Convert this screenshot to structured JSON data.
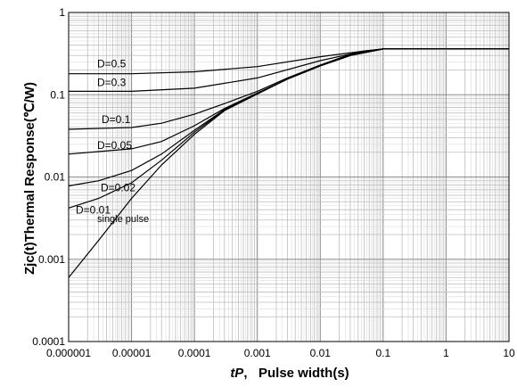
{
  "chart_data": {
    "type": "line",
    "title": "",
    "xlabel_symbol": "tP",
    "xlabel_text": "Pulse width(s)",
    "ylabel": "Zjc(t)Thermal Response(℃/W)",
    "x_scale": "log",
    "y_scale": "log",
    "xlim": [
      1e-06,
      10
    ],
    "ylim": [
      0.0001,
      1
    ],
    "x_ticks": [
      "0.000001",
      "0.00001",
      "0.0001",
      "0.001",
      "0.01",
      "0.1",
      "1",
      "10"
    ],
    "y_ticks": [
      "0.0001",
      "0.001",
      "0.01",
      "0.1",
      "1"
    ],
    "grid": true,
    "series": [
      {
        "name": "D=0.5",
        "x": [
          1e-06,
          1e-05,
          0.0001,
          0.001,
          0.01,
          0.05,
          0.1,
          10
        ],
        "y": [
          0.18,
          0.18,
          0.19,
          0.22,
          0.29,
          0.34,
          0.36,
          0.36
        ]
      },
      {
        "name": "D=0.3",
        "x": [
          1e-06,
          1e-05,
          0.0001,
          0.001,
          0.01,
          0.05,
          0.1,
          10
        ],
        "y": [
          0.11,
          0.11,
          0.12,
          0.16,
          0.26,
          0.34,
          0.36,
          0.36
        ]
      },
      {
        "name": "D=0.1",
        "x": [
          1e-06,
          1e-05,
          3e-05,
          0.0001,
          0.0003,
          0.001,
          0.003,
          0.01,
          0.03,
          0.1,
          10
        ],
        "y": [
          0.038,
          0.04,
          0.045,
          0.058,
          0.078,
          0.11,
          0.16,
          0.23,
          0.31,
          0.36,
          0.36
        ]
      },
      {
        "name": "D=0.05",
        "x": [
          1e-06,
          1e-05,
          3e-05,
          0.0001,
          0.0003,
          0.001,
          0.003,
          0.01,
          0.03,
          0.1,
          10
        ],
        "y": [
          0.019,
          0.022,
          0.027,
          0.042,
          0.068,
          0.105,
          0.155,
          0.225,
          0.3,
          0.36,
          0.36
        ]
      },
      {
        "name": "D=0.02",
        "x": [
          1e-06,
          3e-06,
          1e-05,
          3e-05,
          0.0001,
          0.0003,
          0.001,
          0.003,
          0.01,
          0.03,
          0.1,
          10
        ],
        "y": [
          0.0078,
          0.009,
          0.012,
          0.019,
          0.037,
          0.066,
          0.104,
          0.155,
          0.225,
          0.3,
          0.36,
          0.36
        ]
      },
      {
        "name": "D=0.01",
        "x": [
          1e-06,
          3e-06,
          1e-05,
          3e-05,
          0.0001,
          0.0003,
          0.001,
          0.003,
          0.01,
          0.03,
          0.1,
          10
        ],
        "y": [
          0.0042,
          0.0055,
          0.0085,
          0.016,
          0.035,
          0.065,
          0.103,
          0.155,
          0.225,
          0.3,
          0.36,
          0.36
        ]
      },
      {
        "name": "single pulse",
        "x": [
          1e-06,
          3e-06,
          1e-05,
          3e-05,
          0.0001,
          0.0003,
          0.001,
          0.003,
          0.01,
          0.03,
          0.1,
          0.3
        ],
        "y": [
          0.0006,
          0.0017,
          0.0055,
          0.014,
          0.033,
          0.064,
          0.102,
          0.155,
          0.225,
          0.3,
          0.36,
          0.36
        ]
      }
    ]
  }
}
